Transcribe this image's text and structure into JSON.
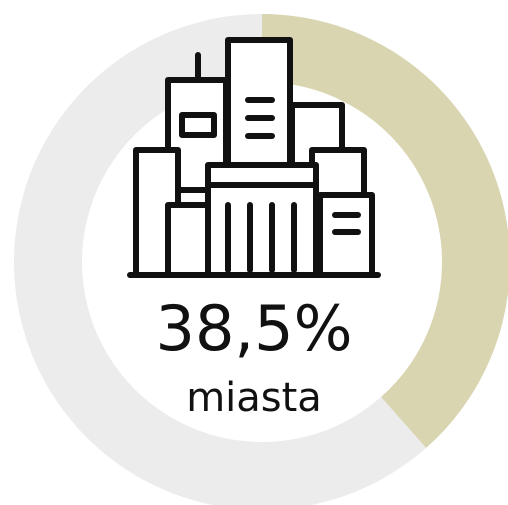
{
  "chart_data": {
    "type": "pie",
    "donut": true,
    "categories": [
      "miasta",
      null
    ],
    "values": [
      38.5,
      61.5
    ],
    "value_labels": [
      "38,5%",
      null
    ],
    "colors": [
      "#d9d5b1",
      "#ececec"
    ]
  }
}
